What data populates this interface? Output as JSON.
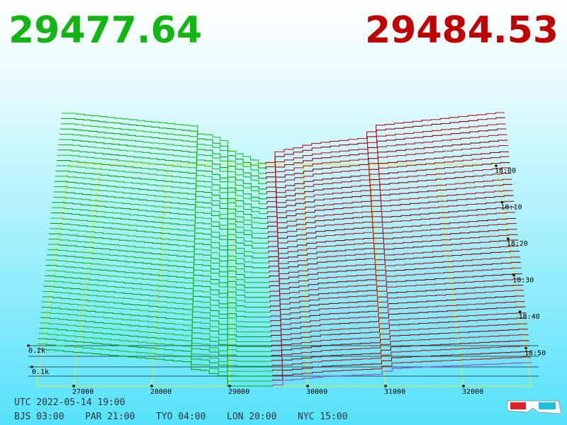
{
  "header": {
    "bid": "29477.64",
    "ask": "29484.53"
  },
  "price_axis": {
    "labels": [
      "27000",
      "28000",
      "29000",
      "30000",
      "31000",
      "32000"
    ]
  },
  "depth_axis": {
    "labels": [
      "0.2k",
      "0.1k"
    ]
  },
  "time_axis": {
    "labels": [
      "18:00",
      "18:10",
      "18:20",
      "18:30",
      "18:40",
      "18:50"
    ]
  },
  "footer": {
    "utc": "UTC 2022-05-14 19:00",
    "zones": [
      "BJS 03:00",
      "PAR 21:00",
      "TYO 04:00",
      "LON 20:00",
      "NYC 15:00"
    ]
  }
}
